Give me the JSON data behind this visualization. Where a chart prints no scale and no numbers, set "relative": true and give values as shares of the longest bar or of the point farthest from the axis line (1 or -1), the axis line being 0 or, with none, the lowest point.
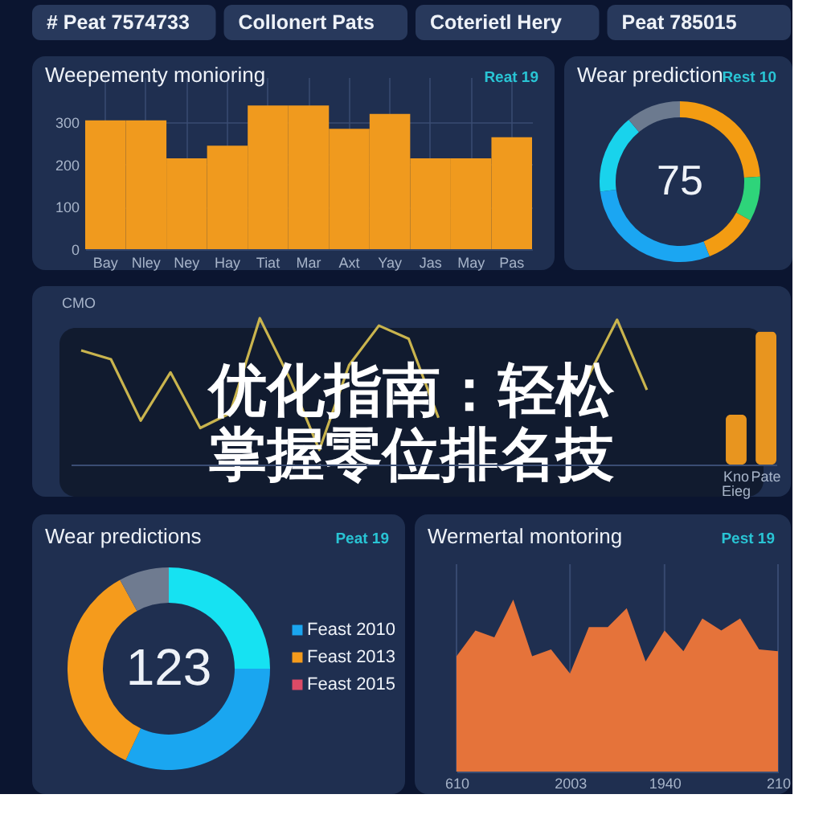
{
  "chart_data": [
    {
      "type": "other",
      "annotations": [
        "# Peat 7574733",
        "Collonert Pats",
        "Coterietl Hery",
        "Peat 785015"
      ]
    },
    {
      "type": "bar",
      "title": "Weepementy monioring",
      "annotations": [
        "Reat 19"
      ],
      "categories": [
        "Bay",
        "Nley",
        "Ney",
        "Hay",
        "Tiat",
        "Mar",
        "Axt",
        "Yay",
        "Jas",
        "May",
        "Pas"
      ],
      "values": [
        305,
        305,
        215,
        245,
        340,
        340,
        285,
        320,
        215,
        215,
        265
      ],
      "color": "#f09a1e",
      "ylim": [
        0,
        350
      ],
      "yticks": [
        0,
        100,
        200,
        300
      ],
      "grid": true
    },
    {
      "type": "donut",
      "title": "Wear prediction",
      "annotations": [
        "Rest 10",
        "75"
      ],
      "categories": [
        null,
        null,
        null,
        null,
        null,
        null
      ],
      "values": [
        24,
        9,
        11,
        29,
        16,
        11
      ],
      "colors": [
        "#f39c12",
        "#2ed47a",
        "#f39c12",
        "#1ba6f2",
        "#19d3ec",
        "#6c7a8f"
      ]
    },
    {
      "type": "line",
      "relative": true,
      "ylabel": "CMO",
      "annotations": [
        "优化指南：轻松掌握零位排名技"
      ],
      "categories": [
        null,
        null,
        null,
        null,
        null,
        null,
        null,
        null,
        null,
        null,
        null,
        null,
        null,
        null,
        null,
        null,
        null,
        null,
        null,
        null,
        null,
        null,
        "Kno Eieg",
        "Pate"
      ],
      "series": [
        {
          "color": "#c9b44e",
          "values": [
            0.78,
            0.72,
            0.3,
            0.63,
            0.25,
            0.35,
            1,
            0.59,
            0.1,
            0.68,
            0.95,
            0.86,
            0.32,
            null,
            null,
            null,
            null,
            0.59,
            0.99,
            0.51,
            null,
            null,
            null,
            null
          ]
        },
        {
          "type": "bar",
          "color": "#e8951f",
          "values": [
            null,
            null,
            null,
            null,
            null,
            null,
            null,
            null,
            null,
            null,
            null,
            null,
            null,
            null,
            null,
            null,
            null,
            null,
            null,
            null,
            null,
            null,
            0.34,
            0.91
          ]
        }
      ]
    },
    {
      "type": "donut",
      "title": "Wear predictions",
      "annotations": [
        "Peat 19",
        "123"
      ],
      "categories": [
        null,
        "Feast 2010",
        "Feast 2013",
        null,
        "Feast 2015"
      ],
      "values": [
        25,
        32,
        35,
        8,
        0
      ],
      "colors": [
        "#16e2f2",
        "#1aa6f0",
        "#f59b1c",
        "#6f7b90",
        "#dc4a66"
      ],
      "legend": "right"
    },
    {
      "type": "area",
      "title": "Wermertal montoring",
      "annotations": [
        "Pest 19"
      ],
      "relative": true,
      "categories": [
        "610",
        null,
        null,
        null,
        null,
        null,
        "2003",
        null,
        null,
        null,
        null,
        "1940",
        null,
        null,
        null,
        null,
        null,
        "210"
      ],
      "values": [
        0.67,
        0.82,
        0.78,
        1,
        0.67,
        0.71,
        0.57,
        0.84,
        0.84,
        0.95,
        0.64,
        0.82,
        0.7,
        0.89,
        0.82,
        0.89,
        0.71,
        0.7
      ],
      "color": "#e5733a",
      "grid": "x"
    }
  ]
}
